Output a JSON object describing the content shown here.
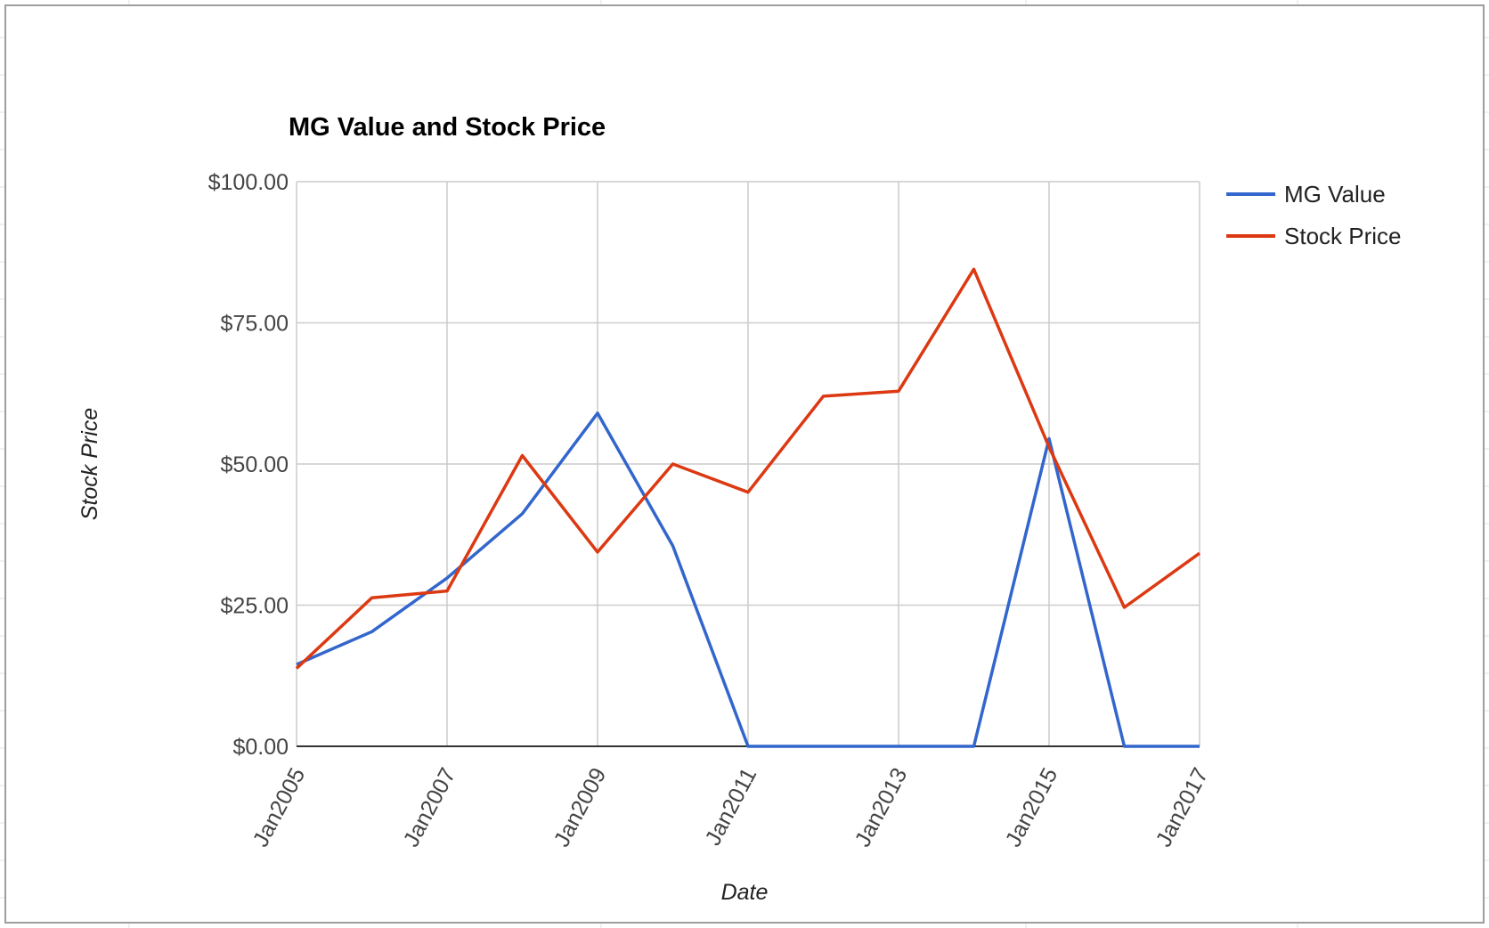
{
  "chart_data": {
    "type": "line",
    "title": "MG Value and Stock Price",
    "xlabel": "Date",
    "ylabel": "Stock Price",
    "x": [
      "2005-01",
      "2006-01",
      "2007-01",
      "2008-01",
      "2009-01",
      "2010-01",
      "2011-01",
      "2012-01",
      "2013-01",
      "2014-01",
      "2015-01",
      "2016-01",
      "2017-01"
    ],
    "x_tick_labels": [
      "Jan2005",
      "Jan2007",
      "Jan2009",
      "Jan2011",
      "Jan2013",
      "Jan2015",
      "Jan2017"
    ],
    "y_tick_labels": [
      "$0.00",
      "$25.00",
      "$50.00",
      "$75.00",
      "$100.00"
    ],
    "y_ticks": [
      0,
      25,
      50,
      75,
      100
    ],
    "ylim": [
      0,
      100
    ],
    "grid": true,
    "legend_position": "right",
    "series": [
      {
        "name": "MG Value",
        "color": "#3366cc",
        "values": [
          14.5,
          20.3,
          29.8,
          41.2,
          59.0,
          35.5,
          0,
          0,
          0,
          0,
          54.5,
          0,
          0
        ]
      },
      {
        "name": "Stock Price",
        "color": "#dc3912",
        "values": [
          13.8,
          26.3,
          27.5,
          51.5,
          34.4,
          50.0,
          45.0,
          62.0,
          62.9,
          84.5,
          53.0,
          24.6,
          34.2
        ]
      }
    ]
  }
}
